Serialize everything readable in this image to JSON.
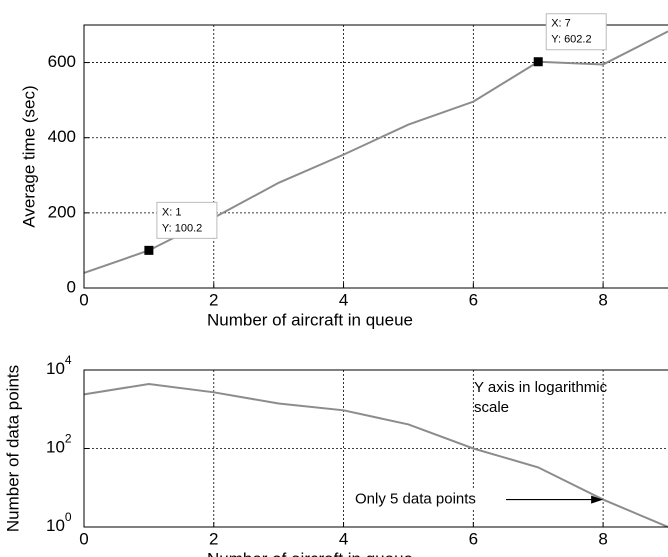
{
  "chart_data": [
    {
      "type": "line",
      "xlabel": "Number of aircraft in queue",
      "ylabel": "Average time (sec)",
      "x": [
        0,
        1,
        2,
        3,
        4,
        5,
        6,
        7,
        8,
        9
      ],
      "series": [
        {
          "color": "#8c8c8c",
          "values": [
            40,
            100.2,
            187,
            280,
            355,
            435,
            496,
            602.2,
            595,
            683
          ]
        }
      ],
      "xlim": [
        0,
        9
      ],
      "xticks": [
        0,
        2,
        4,
        6,
        8
      ],
      "ylim": [
        0,
        700
      ],
      "yticks": [
        0,
        200,
        400,
        600
      ],
      "grid": true,
      "datatips": [
        {
          "x": 1,
          "y": 100.2,
          "x_label": "X: 1",
          "y_label": "Y: 100.2"
        },
        {
          "x": 7,
          "y": 602.2,
          "x_label": "X: 7",
          "y_label": "Y: 602.2"
        }
      ]
    },
    {
      "type": "line",
      "xlabel": "Number of aircraft in queue",
      "ylabel": "Number of data points",
      "x": [
        0,
        1,
        2,
        3,
        4,
        5,
        6,
        7,
        8,
        9
      ],
      "series": [
        {
          "color": "#8c8c8c",
          "values": [
            2400,
            4400,
            2700,
            1400,
            940,
            410,
            100,
            33,
            5,
            1
          ]
        }
      ],
      "xlim": [
        0,
        9
      ],
      "xticks": [
        0,
        2,
        4,
        6,
        8
      ],
      "ylim": [
        1,
        10000
      ],
      "log_scale": true,
      "yticks": [
        {
          "value": 1,
          "label": "10",
          "exponent": "0"
        },
        {
          "value": 100,
          "label": "10",
          "exponent": "2"
        },
        {
          "value": 10000,
          "label": "10",
          "exponent": "4"
        }
      ],
      "grid": true,
      "annotations": [
        {
          "lines": [
            "Y axis in logarithmic",
            "scale"
          ]
        },
        {
          "text": "Only 5 data points",
          "x": 8,
          "y": 5
        }
      ]
    }
  ]
}
